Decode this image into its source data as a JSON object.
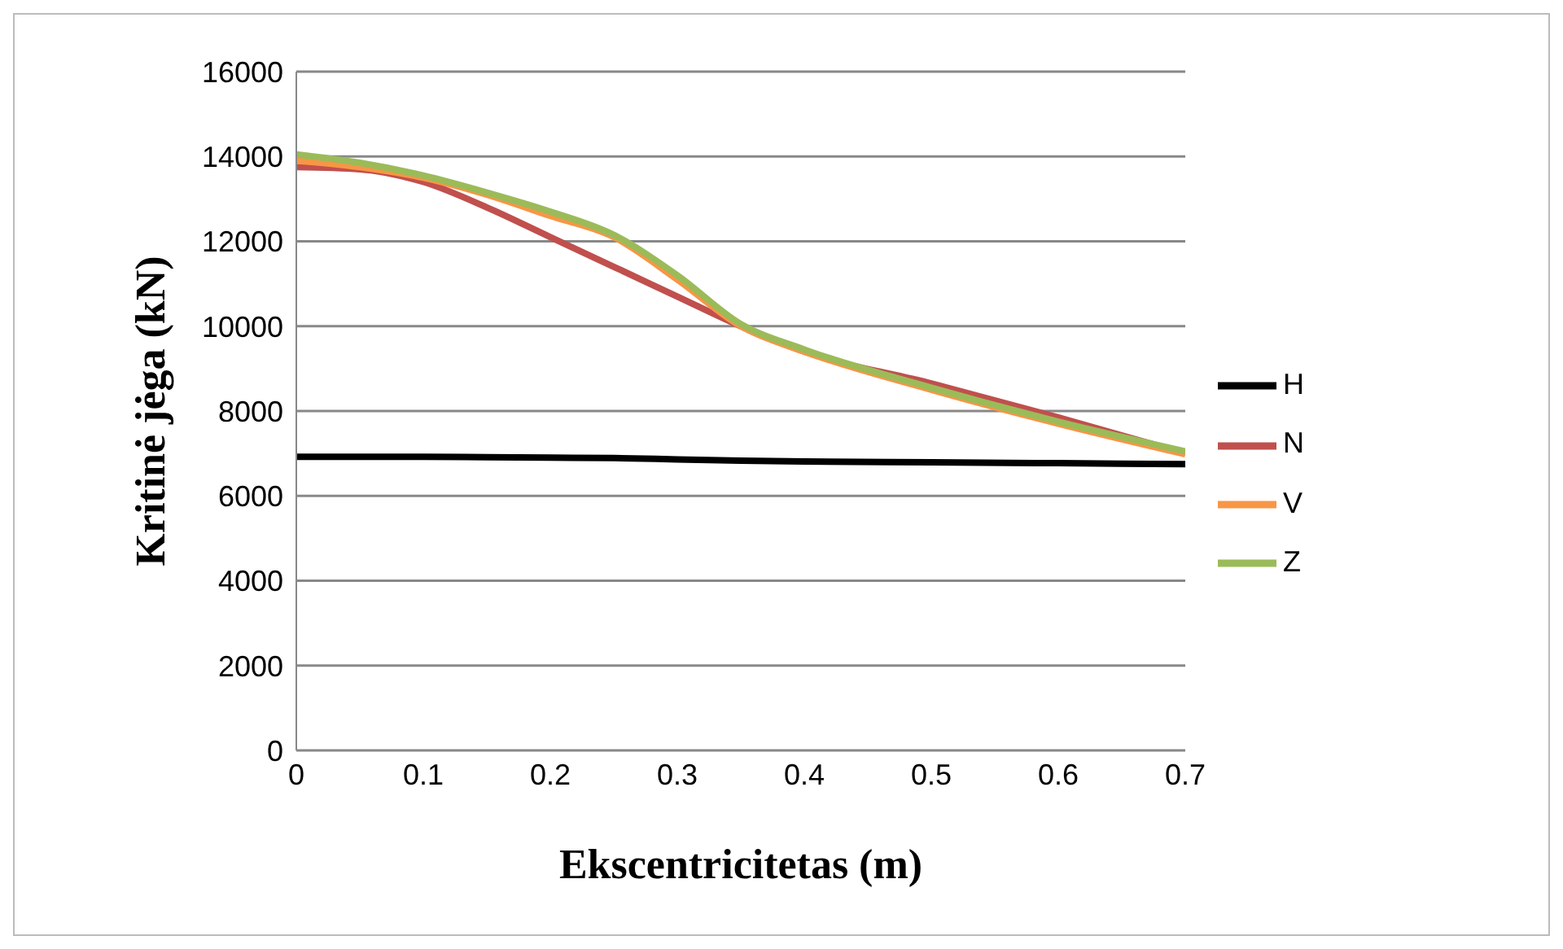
{
  "chart_data": {
    "type": "line",
    "xlabel": "Ekscentricitetas (m)",
    "ylabel": "Kritinė jėga (kN)",
    "x": [
      0,
      0.05,
      0.1,
      0.15,
      0.2,
      0.25,
      0.3,
      0.35,
      0.4,
      0.5,
      0.6,
      0.7
    ],
    "series": [
      {
        "name": "H",
        "color": "#000000",
        "values": [
          6920,
          6920,
          6920,
          6910,
          6900,
          6890,
          6860,
          6830,
          6810,
          6790,
          6770,
          6750
        ]
      },
      {
        "name": "N",
        "color": "#c0504d",
        "values": [
          13750,
          13700,
          13400,
          12800,
          12100,
          11400,
          10700,
          10000,
          9400,
          8650,
          7850,
          7000
        ]
      },
      {
        "name": "V",
        "color": "#f79646",
        "values": [
          13900,
          13750,
          13500,
          13100,
          12600,
          12100,
          11100,
          10000,
          9400,
          8500,
          7700,
          6980
        ]
      },
      {
        "name": "Z",
        "color": "#9bbb59",
        "values": [
          14050,
          13850,
          13550,
          13150,
          12700,
          12150,
          11200,
          10050,
          9450,
          8550,
          7750,
          7050
        ]
      }
    ],
    "xlim": [
      0,
      0.7
    ],
    "xticks": [
      0,
      0.1,
      0.2,
      0.3,
      0.4,
      0.5,
      0.6,
      0.7
    ],
    "ylim": [
      0,
      16000
    ],
    "yticks": [
      0,
      2000,
      4000,
      6000,
      8000,
      10000,
      12000,
      14000,
      16000
    ],
    "grid": "y",
    "legend": "right",
    "marker": "none",
    "line_style": "solid"
  }
}
